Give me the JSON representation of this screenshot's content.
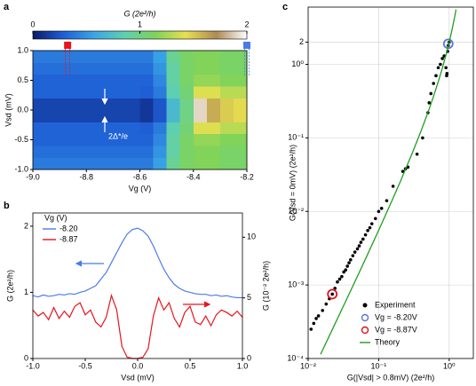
{
  "chart_data": [
    {
      "type": "heatmap",
      "panel_label": "a",
      "x_label": "Vg (V)",
      "y_label": "Vsd (mV)",
      "xlim": [
        -9.0,
        -8.2
      ],
      "ylim": [
        -1.0,
        1.0
      ],
      "xticks": [
        {
          "value": -9.0,
          "label": "-9.0"
        },
        -8.8,
        -8.6,
        -8.4,
        -8.2
      ],
      "yticks": [
        {
          "value": -1.0,
          "label": "-1.0"
        },
        -0.5,
        {
          "value": 0.0,
          "label": "0.0"
        },
        0.5,
        {
          "value": 1.0,
          "label": "1.0"
        }
      ],
      "colorbar": {
        "label": "G (2e²/h)",
        "lim": [
          0,
          2
        ],
        "ticks": [
          0,
          1,
          2
        ],
        "colors": [
          "#0a1a6b",
          "#1f5fd6",
          "#3aa5e6",
          "#5fd0b0",
          "#7ed35a",
          "#e8e050",
          "#b08a55",
          "#ffffff"
        ]
      },
      "annotation": "2Δ*/e",
      "markers": [
        {
          "x": -8.87,
          "color": "#e8141c"
        },
        {
          "x": -8.2,
          "color": "#4a7be8"
        }
      ],
      "x": [
        -8.975,
        -8.925,
        -8.875,
        -8.825,
        -8.775,
        -8.725,
        -8.675,
        -8.625,
        -8.575,
        -8.525,
        -8.475,
        -8.425,
        -8.375,
        -8.325,
        -8.275,
        -8.225
      ],
      "y": [
        -0.9,
        -0.7,
        -0.5,
        -0.3,
        -0.1,
        0.1,
        0.3,
        0.5,
        0.7,
        0.9
      ],
      "z": [
        [
          0.4,
          0.4,
          0.4,
          0.4,
          0.4,
          0.4,
          0.4,
          0.4,
          0.4,
          0.55,
          0.95,
          1.1,
          1.15,
          1.15,
          1.1,
          1.1
        ],
        [
          0.35,
          0.35,
          0.35,
          0.35,
          0.35,
          0.35,
          0.35,
          0.35,
          0.35,
          0.5,
          0.9,
          1.1,
          1.15,
          1.15,
          1.1,
          1.1
        ],
        [
          0.3,
          0.3,
          0.3,
          0.3,
          0.3,
          0.3,
          0.3,
          0.3,
          0.3,
          0.45,
          0.9,
          1.1,
          1.2,
          1.2,
          1.15,
          1.15
        ],
        [
          0.3,
          0.3,
          0.3,
          0.3,
          0.3,
          0.3,
          0.3,
          0.3,
          0.28,
          0.4,
          0.85,
          1.05,
          1.4,
          1.4,
          1.3,
          1.3
        ],
        [
          0.18,
          0.18,
          0.18,
          0.18,
          0.18,
          0.18,
          0.18,
          0.18,
          0.12,
          0.25,
          0.7,
          1.0,
          1.9,
          1.6,
          1.5,
          1.45
        ],
        [
          0.18,
          0.18,
          0.18,
          0.18,
          0.18,
          0.18,
          0.18,
          0.18,
          0.12,
          0.25,
          0.7,
          1.0,
          1.9,
          1.6,
          1.5,
          1.45
        ],
        [
          0.3,
          0.3,
          0.3,
          0.3,
          0.3,
          0.3,
          0.3,
          0.3,
          0.28,
          0.4,
          0.85,
          1.05,
          1.4,
          1.4,
          1.3,
          1.3
        ],
        [
          0.3,
          0.3,
          0.3,
          0.3,
          0.3,
          0.3,
          0.3,
          0.3,
          0.3,
          0.45,
          0.9,
          1.1,
          1.2,
          1.2,
          1.15,
          1.15
        ],
        [
          0.35,
          0.35,
          0.35,
          0.35,
          0.35,
          0.35,
          0.35,
          0.35,
          0.35,
          0.5,
          0.9,
          1.1,
          1.15,
          1.15,
          1.1,
          1.1
        ],
        [
          0.4,
          0.4,
          0.4,
          0.4,
          0.4,
          0.4,
          0.4,
          0.4,
          0.4,
          0.55,
          0.95,
          1.1,
          1.15,
          1.15,
          1.1,
          1.1
        ]
      ]
    },
    {
      "type": "line",
      "panel_label": "b",
      "x_label": "Vsd (mV)",
      "y_label": "G (2e²/h)",
      "y2_label": "G (10⁻² 2e²/h)",
      "legend_title": "Vg (V)",
      "xlim": [
        -1.0,
        1.0
      ],
      "ylim": [
        0,
        2.2
      ],
      "y2lim": [
        0,
        12
      ],
      "xticks": [
        {
          "value": -1.0,
          "label": "-1.0"
        },
        -0.5,
        {
          "value": 0.0,
          "label": "0.0"
        },
        0.5,
        {
          "value": 1.0,
          "label": "1.0"
        }
      ],
      "yticks": [
        0,
        1,
        2
      ],
      "y2ticks": [
        0,
        5,
        10
      ],
      "x": [
        -1.0,
        -0.95,
        -0.9,
        -0.85,
        -0.8,
        -0.75,
        -0.7,
        -0.65,
        -0.6,
        -0.55,
        -0.5,
        -0.45,
        -0.4,
        -0.35,
        -0.3,
        -0.25,
        -0.2,
        -0.15,
        -0.1,
        -0.05,
        0.0,
        0.05,
        0.1,
        0.15,
        0.2,
        0.25,
        0.3,
        0.35,
        0.4,
        0.45,
        0.5,
        0.55,
        0.6,
        0.65,
        0.7,
        0.75,
        0.8,
        0.85,
        0.9,
        0.95,
        1.0
      ],
      "series": [
        {
          "name": "-8.20",
          "color": "#4a7be8",
          "values": [
            0.95,
            0.93,
            0.96,
            0.94,
            0.95,
            0.97,
            0.96,
            0.98,
            0.97,
            1.0,
            1.02,
            1.06,
            1.1,
            1.2,
            1.3,
            1.45,
            1.6,
            1.75,
            1.88,
            1.95,
            1.97,
            1.93,
            1.85,
            1.7,
            1.52,
            1.35,
            1.22,
            1.12,
            1.06,
            1.02,
            1.0,
            0.98,
            0.97,
            0.97,
            0.95,
            0.96,
            0.94,
            0.95,
            0.93,
            0.92,
            0.92
          ]
        },
        {
          "name": "-8.87",
          "color": "#e8141c",
          "axis": "y2",
          "values": [
            4.0,
            3.5,
            3.8,
            3.2,
            4.2,
            3.3,
            3.9,
            3.4,
            4.3,
            4.6,
            3.6,
            4.0,
            3.0,
            2.6,
            3.4,
            5.2,
            4.0,
            1.0,
            0.1,
            0.0,
            0.0,
            0.1,
            0.8,
            3.5,
            5.0,
            4.0,
            4.6,
            3.3,
            2.6,
            3.8,
            4.3,
            3.0,
            2.8,
            3.5,
            2.7,
            3.6,
            4.0,
            3.8,
            3.5,
            3.9,
            3.4
          ]
        }
      ]
    },
    {
      "type": "scatter",
      "panel_label": "c",
      "x_label": "G(|Vsd| > 0.8mV) (2e²/h)",
      "y_label": "G(Vsd = 0mV) (2e²/h)",
      "log_x": true,
      "log_y": true,
      "grid": true,
      "legend": "lower right",
      "xlim": [
        0.01,
        2.2
      ],
      "ylim": [
        0.0001,
        6
      ],
      "xticks": [
        {
          "value": 0.01,
          "label": "10⁻²"
        },
        {
          "value": 0.1,
          "label": "10⁻¹"
        },
        {
          "value": 1,
          "label": "10⁰"
        }
      ],
      "yticks": [
        {
          "value": 0.0001,
          "label": "10⁻⁴"
        },
        {
          "value": 0.001,
          "label": "10⁻³"
        },
        {
          "value": 0.01,
          "label": "10⁻²"
        },
        {
          "value": 0.1,
          "label": "10⁻¹"
        },
        {
          "value": 1,
          "label": "10⁰"
        },
        2
      ],
      "series": [
        {
          "name": "Experiment",
          "color": "#000000",
          "mark": "dot",
          "x": [
            0.011,
            0.012,
            0.013,
            0.014,
            0.016,
            0.018,
            0.02,
            0.022,
            0.024,
            0.026,
            0.028,
            0.03,
            0.032,
            0.034,
            0.036,
            0.038,
            0.04,
            0.043,
            0.046,
            0.05,
            0.053,
            0.056,
            0.06,
            0.065,
            0.07,
            0.075,
            0.08,
            0.09,
            0.1,
            0.11,
            0.13,
            0.16,
            0.22,
            0.24,
            0.26,
            0.35,
            0.42,
            0.5,
            0.52,
            0.55,
            0.6,
            0.65,
            0.7,
            0.75,
            0.8,
            0.85,
            0.9,
            0.92,
            0.93,
            0.95,
            0.97,
            1.0
          ],
          "values": [
            0.00025,
            0.0003,
            0.00035,
            0.00038,
            0.00045,
            0.00055,
            0.00065,
            0.00075,
            0.0009,
            0.0011,
            0.0012,
            0.0013,
            0.0015,
            0.0016,
            0.0018,
            0.002,
            0.0022,
            0.0025,
            0.0028,
            0.0031,
            0.0034,
            0.0038,
            0.0042,
            0.0048,
            0.0055,
            0.006,
            0.0068,
            0.008,
            0.01,
            0.011,
            0.014,
            0.022,
            0.035,
            0.038,
            0.04,
            0.06,
            0.1,
            0.22,
            0.3,
            0.4,
            0.55,
            0.7,
            0.9,
            1.0,
            1.2,
            1.3,
            0.9,
            0.7,
            0.75,
            1.5,
            1.8,
            2.0
          ]
        },
        {
          "name": "Vg = -8.20V",
          "color": "#5a73e0",
          "mark": "ring",
          "x": [
            0.97
          ],
          "values": [
            1.9
          ]
        },
        {
          "name": "Vg = -8.87V",
          "color": "#e0141c",
          "mark": "ring",
          "x": [
            0.022
          ],
          "values": [
            0.00075
          ]
        },
        {
          "name": "Theory",
          "color": "#1f9e1f",
          "mark": "line",
          "x": [
            0.015,
            0.02,
            0.03,
            0.05,
            0.07,
            0.1,
            0.15,
            0.2,
            0.3,
            0.4,
            0.5,
            0.6,
            0.7,
            0.8,
            0.9,
            1.0,
            1.1,
            1.2,
            1.25
          ],
          "values": [
            0.000114,
            0.000204,
            0.000464,
            0.00131,
            0.00263,
            0.00554,
            0.01315,
            0.0247,
            0.0623,
            0.125,
            0.222,
            0.367,
            0.58,
            0.889,
            1.339,
            2,
            2.99,
            4.5,
            5.56
          ]
        }
      ]
    }
  ]
}
